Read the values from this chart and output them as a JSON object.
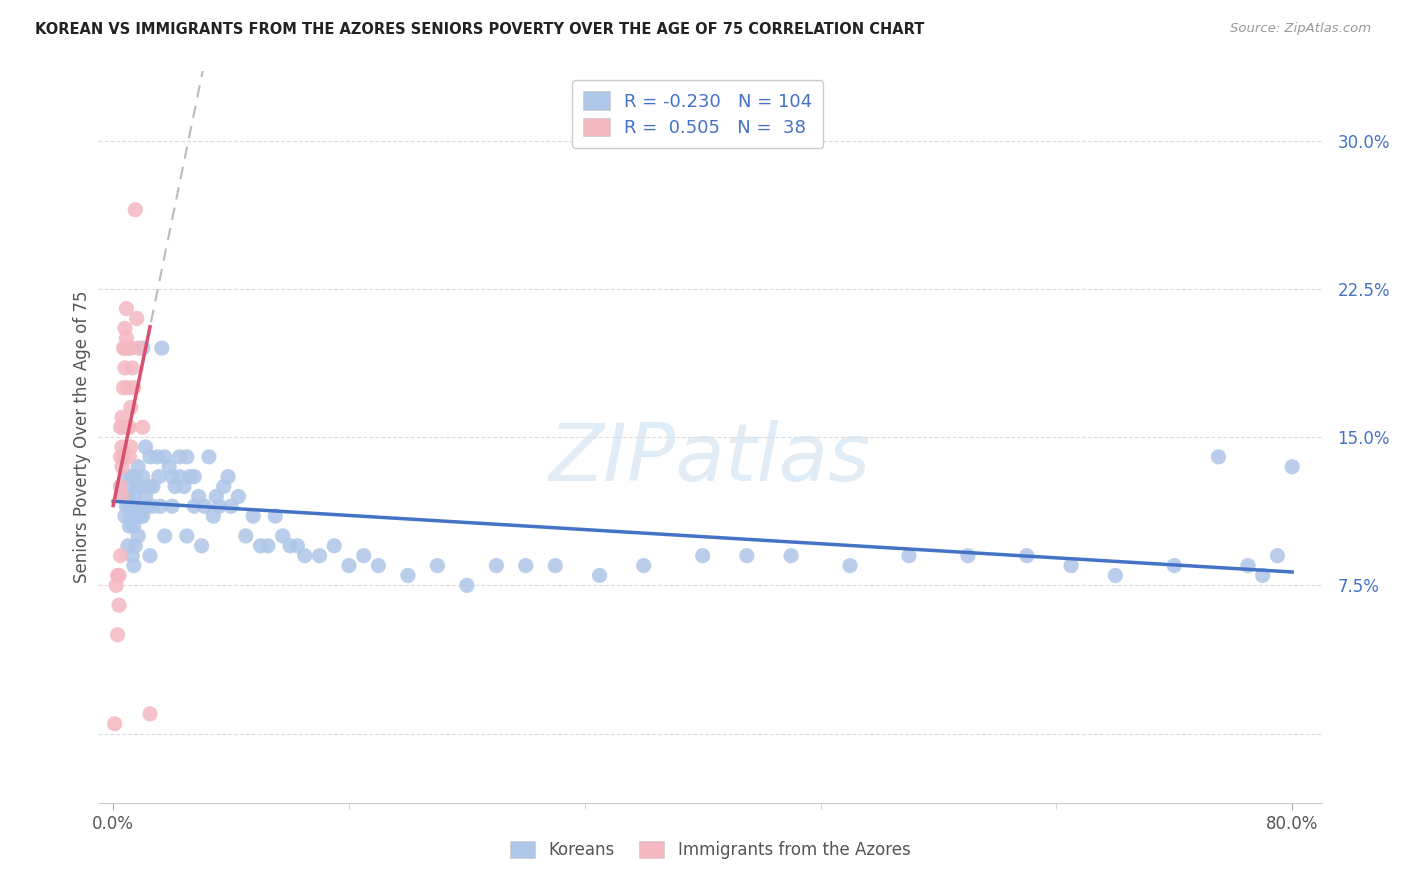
{
  "title": "KOREAN VS IMMIGRANTS FROM THE AZORES SENIORS POVERTY OVER THE AGE OF 75 CORRELATION CHART",
  "source": "Source: ZipAtlas.com",
  "ylabel": "Seniors Poverty Over the Age of 75",
  "xlim": [
    -0.01,
    0.82
  ],
  "ylim": [
    -0.035,
    0.335
  ],
  "yticks": [
    0.0,
    0.075,
    0.15,
    0.225,
    0.3
  ],
  "ytick_labels": [
    "",
    "7.5%",
    "15.0%",
    "22.5%",
    "30.0%"
  ],
  "xtick_positions": [
    0.0,
    0.8
  ],
  "xtick_labels": [
    "0.0%",
    "80.0%"
  ],
  "korean_color": "#aec6e8",
  "azores_color": "#f4b8c1",
  "korean_R": -0.23,
  "korean_N": 104,
  "azores_R": 0.505,
  "azores_N": 38,
  "line_color_korean": "#4472c4",
  "line_color_azores": "#d94f6d",
  "watermark": "ZIPatlas",
  "background_color": "#ffffff",
  "korean_x": [
    0.005,
    0.007,
    0.008,
    0.009,
    0.01,
    0.01,
    0.01,
    0.011,
    0.011,
    0.012,
    0.012,
    0.013,
    0.013,
    0.013,
    0.014,
    0.014,
    0.014,
    0.015,
    0.015,
    0.015,
    0.016,
    0.016,
    0.017,
    0.017,
    0.018,
    0.018,
    0.019,
    0.02,
    0.02,
    0.02,
    0.022,
    0.022,
    0.023,
    0.025,
    0.025,
    0.025,
    0.027,
    0.027,
    0.03,
    0.031,
    0.032,
    0.033,
    0.035,
    0.035,
    0.038,
    0.04,
    0.04,
    0.042,
    0.045,
    0.045,
    0.048,
    0.05,
    0.05,
    0.052,
    0.055,
    0.055,
    0.058,
    0.06,
    0.062,
    0.065,
    0.068,
    0.07,
    0.072,
    0.075,
    0.078,
    0.08,
    0.085,
    0.09,
    0.095,
    0.1,
    0.105,
    0.11,
    0.115,
    0.12,
    0.125,
    0.13,
    0.14,
    0.15,
    0.16,
    0.17,
    0.18,
    0.2,
    0.22,
    0.24,
    0.26,
    0.28,
    0.3,
    0.33,
    0.36,
    0.4,
    0.43,
    0.46,
    0.5,
    0.54,
    0.58,
    0.62,
    0.65,
    0.68,
    0.72,
    0.75,
    0.77,
    0.78,
    0.79,
    0.8
  ],
  "korean_y": [
    0.125,
    0.12,
    0.11,
    0.115,
    0.13,
    0.12,
    0.095,
    0.115,
    0.105,
    0.125,
    0.11,
    0.13,
    0.115,
    0.09,
    0.12,
    0.105,
    0.085,
    0.13,
    0.11,
    0.095,
    0.125,
    0.115,
    0.135,
    0.1,
    0.125,
    0.115,
    0.11,
    0.195,
    0.13,
    0.11,
    0.145,
    0.12,
    0.115,
    0.14,
    0.125,
    0.09,
    0.125,
    0.115,
    0.14,
    0.13,
    0.115,
    0.195,
    0.14,
    0.1,
    0.135,
    0.13,
    0.115,
    0.125,
    0.14,
    0.13,
    0.125,
    0.14,
    0.1,
    0.13,
    0.13,
    0.115,
    0.12,
    0.095,
    0.115,
    0.14,
    0.11,
    0.12,
    0.115,
    0.125,
    0.13,
    0.115,
    0.12,
    0.1,
    0.11,
    0.095,
    0.095,
    0.11,
    0.1,
    0.095,
    0.095,
    0.09,
    0.09,
    0.095,
    0.085,
    0.09,
    0.085,
    0.08,
    0.085,
    0.075,
    0.085,
    0.085,
    0.085,
    0.08,
    0.085,
    0.09,
    0.09,
    0.09,
    0.085,
    0.09,
    0.09,
    0.09,
    0.085,
    0.08,
    0.085,
    0.14,
    0.085,
    0.08,
    0.09,
    0.135
  ],
  "azores_x": [
    0.001,
    0.002,
    0.003,
    0.003,
    0.004,
    0.004,
    0.005,
    0.005,
    0.005,
    0.005,
    0.006,
    0.006,
    0.006,
    0.006,
    0.007,
    0.007,
    0.007,
    0.007,
    0.008,
    0.008,
    0.008,
    0.009,
    0.009,
    0.01,
    0.01,
    0.01,
    0.011,
    0.011,
    0.012,
    0.012,
    0.012,
    0.013,
    0.014,
    0.015,
    0.016,
    0.017,
    0.02,
    0.025
  ],
  "azores_y": [
    0.005,
    0.075,
    0.08,
    0.05,
    0.08,
    0.065,
    0.125,
    0.09,
    0.155,
    0.14,
    0.145,
    0.135,
    0.16,
    0.12,
    0.14,
    0.175,
    0.195,
    0.155,
    0.195,
    0.205,
    0.185,
    0.215,
    0.2,
    0.195,
    0.175,
    0.155,
    0.155,
    0.14,
    0.165,
    0.195,
    0.145,
    0.185,
    0.175,
    0.265,
    0.21,
    0.195,
    0.155,
    0.01
  ],
  "grid_color": "#dddddd",
  "tick_color": "#888888"
}
